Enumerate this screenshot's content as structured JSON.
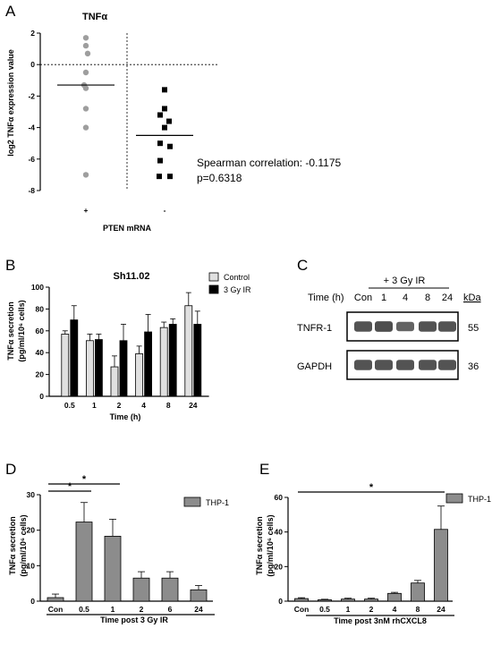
{
  "panels": {
    "A": {
      "label": "A"
    },
    "B": {
      "label": "B"
    },
    "C": {
      "label": "C"
    },
    "D": {
      "label": "D"
    },
    "E": {
      "label": "E"
    }
  },
  "chart_data": [
    {
      "id": "A",
      "type": "scatter",
      "title": "TNFα",
      "xlabel": "PTEN mRNA",
      "ylabel": "log2 TNFα expression value",
      "categories": [
        "+",
        "-"
      ],
      "ylim": [
        -8,
        2
      ],
      "yticks": [
        "2",
        "0",
        "-2",
        "-4",
        "-6",
        "-8"
      ],
      "series": [
        {
          "category": "+",
          "marker": "circle",
          "color": "#9e9e9e",
          "values": [
            1.7,
            1.2,
            0.7,
            -0.5,
            -1.3,
            -1.5,
            -2.8,
            -4.0,
            -7.0
          ],
          "mean": -1.3
        },
        {
          "category": "-",
          "marker": "square",
          "color": "#000000",
          "values": [
            -1.6,
            -2.8,
            -3.2,
            -3.6,
            -4.0,
            -5.0,
            -5.2,
            -6.1,
            -7.1,
            -7.1
          ],
          "mean": -4.5
        }
      ],
      "annotations": [
        "Spearman correlation: -0.1175",
        "p=0.6318"
      ]
    },
    {
      "id": "B",
      "type": "bar",
      "title": "Sh11.02",
      "xlabel": "Time (h)",
      "ylabel": "TNFα secretion",
      "ylabel2": "(pg/ml/10⁶ cells)",
      "categories": [
        "0.5",
        "1",
        "2",
        "4",
        "8",
        "24"
      ],
      "ylim": [
        0,
        100
      ],
      "yticks": [
        "0",
        "20",
        "40",
        "60",
        "80",
        "100"
      ],
      "legend_position": "top-right",
      "series": [
        {
          "name": "Control",
          "color": "#e0e0e0",
          "values": [
            57,
            51,
            27,
            39,
            63,
            83
          ],
          "errors": [
            3,
            6,
            10,
            7,
            5,
            12
          ]
        },
        {
          "name": "3 Gy IR",
          "color": "#000000",
          "values": [
            70,
            52,
            51,
            59,
            66,
            66
          ],
          "errors": [
            13,
            5,
            15,
            16,
            5,
            12
          ]
        }
      ]
    },
    {
      "id": "C",
      "type": "table",
      "header_group": "+ 3 Gy IR",
      "time_label": "Time (h)",
      "lanes": [
        "Con",
        "1",
        "4",
        "8",
        "24"
      ],
      "kda_label": "kDa",
      "rows": [
        {
          "name": "TNFR-1",
          "kda": "55",
          "intensity": [
            0.9,
            0.95,
            0.75,
            0.9,
            0.9
          ]
        },
        {
          "name": "GAPDH",
          "kda": "36",
          "intensity": [
            0.9,
            0.9,
            0.9,
            0.9,
            0.9
          ]
        }
      ]
    },
    {
      "id": "D",
      "type": "bar",
      "xlabel": "Time post 3 Gy IR",
      "ylabel": "TNFα secretion",
      "ylabel2": "(pg/ml/10⁶ cells)",
      "categories": [
        "Con",
        "0.5",
        "1",
        "2",
        "6",
        "24"
      ],
      "ylim": [
        0,
        30
      ],
      "yticks": [
        "0",
        "10",
        "20",
        "30"
      ],
      "legend_position": "top-right",
      "series": [
        {
          "name": "THP-1",
          "color": "#8c8c8c",
          "values": [
            1.0,
            22.3,
            18.3,
            6.5,
            6.5,
            3.2
          ],
          "errors": [
            1.0,
            5.5,
            4.8,
            1.8,
            1.8,
            1.2
          ]
        }
      ],
      "significance": [
        {
          "from": "Con",
          "to": "0.5",
          "label": "*"
        },
        {
          "from": "Con",
          "to": "1",
          "label": "*"
        }
      ]
    },
    {
      "id": "E",
      "type": "bar",
      "xlabel": "Time post 3nM rhCXCL8",
      "ylabel": "TNFα secretion",
      "ylabel2": "(pg/ml/10⁶ cells)",
      "categories": [
        "Con",
        "0.5",
        "1",
        "2",
        "4",
        "8",
        "24"
      ],
      "ylim": [
        0,
        60
      ],
      "yticks": [
        "0",
        "20",
        "40",
        "60"
      ],
      "legend_position": "top-right",
      "series": [
        {
          "name": "THP-1",
          "color": "#8c8c8c",
          "values": [
            1.5,
            0.8,
            1.2,
            1.2,
            4.5,
            10.5,
            41.5
          ],
          "errors": [
            0.5,
            0.3,
            0.5,
            0.5,
            0.6,
            1.5,
            13.5
          ]
        }
      ],
      "significance": [
        {
          "from": "Con",
          "to": "24",
          "label": "*"
        }
      ]
    }
  ]
}
